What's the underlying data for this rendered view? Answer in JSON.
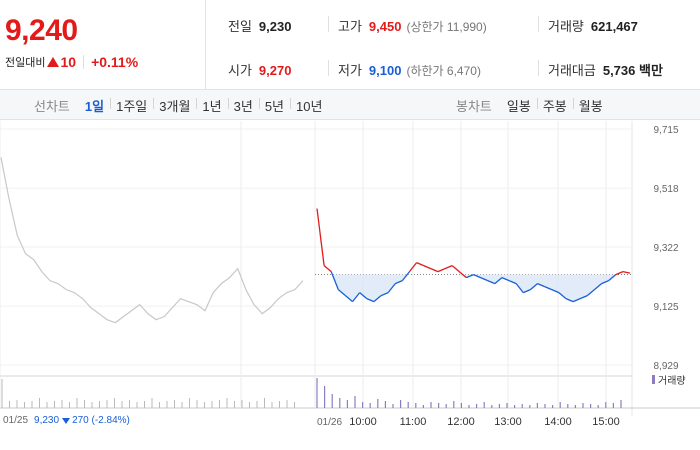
{
  "price": {
    "current": "9,240",
    "change_label": "전일대비",
    "change_amount": "10",
    "change_pct": "+0.11%"
  },
  "info": {
    "prev_close_label": "전일",
    "prev_close": "9,230",
    "open_label": "시가",
    "open": "9,270",
    "high_label": "고가",
    "high": "9,450",
    "upper_limit": "(상한가 11,990)",
    "low_label": "저가",
    "low": "9,100",
    "lower_limit": "(하한가 6,470)",
    "volume_label": "거래량",
    "volume": "621,467",
    "amount_label": "거래대금",
    "amount": "5,736 백만"
  },
  "line_tabs": {
    "label": "선차트",
    "items": [
      "1일",
      "1주일",
      "3개월",
      "1년",
      "3년",
      "5년",
      "10년"
    ],
    "active": 0
  },
  "candle_tabs": {
    "label": "봉차트",
    "items": [
      "일봉",
      "주봉",
      "월봉"
    ]
  },
  "volume_legend": "거래량",
  "footer": {
    "prev_date": "01/25",
    "prev_price": "9,230",
    "prev_change": "270 (-2.84%)"
  },
  "colors": {
    "up": "#e21a1a",
    "down": "#1a5ed7",
    "prev_day": "#c8c8c8",
    "volume": "#8e7cc3"
  },
  "chart_data": {
    "type": "line",
    "y_ticks": [
      "9,715",
      "9,518",
      "9,322",
      "9,125",
      "8,929"
    ],
    "y_tick_values": [
      9715,
      9518,
      9322,
      9125,
      8929
    ],
    "ylim": [
      8929,
      9715
    ],
    "base_price": 9230,
    "x_labels": [
      "01/25",
      "01/26",
      "10:00",
      "11:00",
      "12:00",
      "13:00",
      "14:00",
      "15:00"
    ],
    "series": [
      {
        "values": [
          9620,
          9480,
          9360,
          9300,
          9280,
          9240,
          9210,
          9200,
          9180,
          9170,
          9150,
          9120,
          9100,
          9080,
          9070,
          9090,
          9110,
          9130,
          9100,
          9080,
          9090,
          9120,
          9150,
          9140,
          9130,
          9110,
          9170,
          9200,
          9220,
          9250,
          9180,
          9130,
          9100,
          9120,
          9150,
          9170,
          9180,
          9210
        ]
      },
      {
        "values": [
          9450,
          9260,
          9240,
          9180,
          9160,
          9140,
          9170,
          9150,
          9140,
          9160,
          9170,
          9200,
          9210,
          9240,
          9270,
          9260,
          9250,
          9240,
          9250,
          9260,
          9240,
          9220,
          9230,
          9220,
          9210,
          9200,
          9220,
          9210,
          9200,
          9170,
          9180,
          9200,
          9190,
          9180,
          9170,
          9150,
          9140,
          9150,
          9160,
          9180,
          9200,
          9210,
          9230,
          9240,
          9235
        ]
      }
    ]
  }
}
